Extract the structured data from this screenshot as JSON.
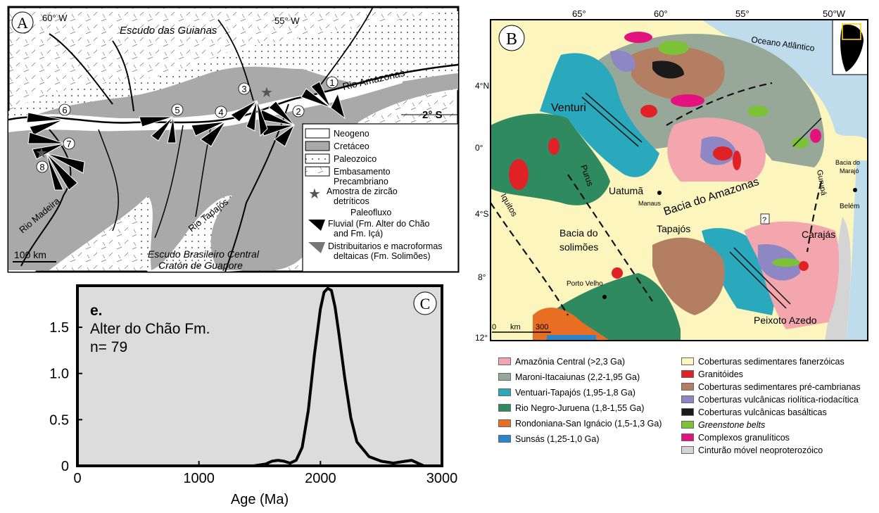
{
  "panel_a": {
    "letter": "A",
    "lon_labels": [
      "60° W",
      "55° W"
    ],
    "lat_label": "2° S",
    "places": {
      "escudo_guianas": "Escudo das Guianas",
      "rio_amazonas": "Rio Amazonas",
      "rio_madeira": "Rio Madeira",
      "rio_tapajos": "Rio Tapajós",
      "escudo_brasileiro": "Escudo Brasileiro Central",
      "craton": "Cratón de Guapore"
    },
    "site_numbers": [
      "1",
      "2",
      "3",
      "4",
      "5",
      "6",
      "7",
      "8"
    ],
    "scale": "100 km",
    "legend": {
      "neogeno": "Neogeno",
      "cretaceo": "Cretáceo",
      "paleozoico": "Paleozoico",
      "embasamento_1": "Embasamento",
      "embasamento_2": "Precambriano",
      "amostra_1": "Amostra de zircão",
      "amostra_2": "detríticos",
      "paleofluxo": "Paleofluxo",
      "fluvial_1": "Fluvial (Fm. Alter do Chão",
      "fluvial_2": "and Fm. Içá)",
      "distrib_1": "Distribuitarios e macroformas",
      "distrib_2": "deltaicas (Fm. Solimões)"
    }
  },
  "panel_b": {
    "letter": "B",
    "lon_labels": [
      "65°",
      "60°",
      "55°",
      "50°W"
    ],
    "lat_labels": [
      "4°N",
      "0°",
      "4°S",
      "8°",
      "12°"
    ],
    "places": {
      "oceano": "Oceano Atlântico",
      "venturi": "Venturi",
      "uatuma": "Uatumã",
      "manaus": "Manaus",
      "bacia_amazonas": "Bacia do Amazonas",
      "bacia_marajo_1": "Bacia do",
      "bacia_marajo_2": "Marajó",
      "gurupa": "Gurupá",
      "belem": "Belém",
      "iquitos": "Iquitos",
      "purus": "Purus",
      "tapajos": "Tapajós",
      "carajas": "Carajás",
      "question": "?",
      "bacia_solimoes_1": "Bacia do",
      "bacia_solimoes_2": "solimões",
      "porto_velho": "Porto Velho",
      "peixoto": "Peixoto Azedo"
    },
    "scale": {
      "zero": "0",
      "unit": "km",
      "max": "300"
    },
    "colors": {
      "amazonia_central": "#f3a6ae",
      "maroni": "#97a898",
      "ventuari": "#2aa9bd",
      "rio_negro": "#2f8a60",
      "rondoniana": "#e86e24",
      "sunsas": "#2a86cc",
      "sedimentares_fan": "#fcf5be",
      "granitoides": "#e02226",
      "sedimentares_pre": "#b47e62",
      "vulc_rio": "#8f86c4",
      "vulc_bas": "#1a1a1a",
      "greenstone": "#7cc236",
      "granuliticos": "#e4127f",
      "cinturao": "#d4d4d4",
      "ocean": "#bfdcec"
    }
  },
  "legend_b": {
    "left": [
      {
        "label": "Amazônia Central (>2,3 Ga)",
        "color": "#f3a6ae"
      },
      {
        "label": "Maroni-Itacaiunas (2,2-1,95 Ga)",
        "color": "#97a898"
      },
      {
        "label": "Ventuari-Tapajós (1,95-1,8 Ga)",
        "color": "#2aa9bd"
      },
      {
        "label": "Rio Negro-Juruena (1,8-1,55 Ga)",
        "color": "#2f8a60"
      },
      {
        "label": "Rondoniana-San Ignácio (1,5-1,3 Ga)",
        "color": "#e86e24"
      },
      {
        "label": "Sunsás (1,25-1,0 Ga)",
        "color": "#2a86cc"
      }
    ],
    "right": [
      {
        "label": "Coberturas sedimentares fanerzóicas",
        "color": "#fcf5be"
      },
      {
        "label": "Granitóides",
        "color": "#e02226"
      },
      {
        "label": "Coberturas sedimentares pré-cambrianas",
        "color": "#b47e62"
      },
      {
        "label": "Coberturas vulcânicas riolítica-riodacítica",
        "color": "#8f86c4"
      },
      {
        "label": "Coberturas vulcânicas basálticas",
        "color": "#1a1a1a"
      },
      {
        "label": "Greenstone belts",
        "color": "#7cc236",
        "italic": true
      },
      {
        "label": "Complexos granulíticos",
        "color": "#e4127f"
      },
      {
        "label": "Cinturão móvel neoproterozóico",
        "color": "#d4d4d4"
      }
    ]
  },
  "chart_data": {
    "type": "line",
    "panel_letter": "C",
    "annotation": [
      "e.",
      "Alter do Chão Fm.",
      "n= 79"
    ],
    "xlabel": "Age (Ma)",
    "ylabel": "",
    "xlim": [
      0,
      3000
    ],
    "ylim": [
      0,
      1.95
    ],
    "xticks": [
      0,
      1000,
      2000,
      3000
    ],
    "yticks": [
      0,
      0.5,
      1.0,
      1.5
    ],
    "ytick_labels": [
      "0",
      "0.5",
      "1.0",
      "1.5"
    ],
    "grid": false,
    "x": [
      1450,
      1550,
      1600,
      1650,
      1700,
      1750,
      1800,
      1850,
      1900,
      1950,
      2000,
      2030,
      2060,
      2090,
      2120,
      2150,
      2200,
      2250,
      2300,
      2400,
      2500,
      2600,
      2700,
      2750,
      2800,
      2850
    ],
    "y": [
      0,
      0.02,
      0.05,
      0.06,
      0.05,
      0.03,
      0.06,
      0.2,
      0.6,
      1.2,
      1.7,
      1.88,
      1.92,
      1.9,
      1.72,
      1.45,
      0.95,
      0.52,
      0.26,
      0.1,
      0.05,
      0.03,
      0.05,
      0.06,
      0.03,
      0
    ]
  }
}
